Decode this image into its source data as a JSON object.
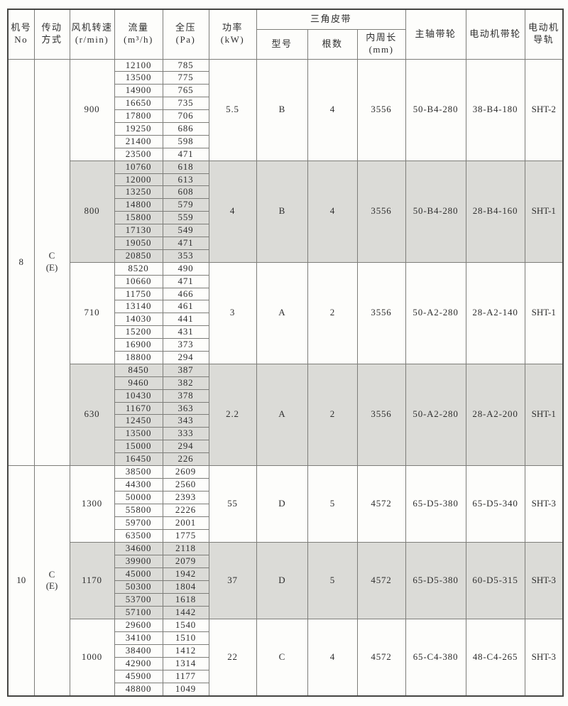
{
  "colors": {
    "shaded_row_bg": "#dbdbd7",
    "grid_line": "#7d7d79",
    "outer_border": "#454542",
    "text": "#2e2e2e",
    "page_bg": "#fdfdfb"
  },
  "table": {
    "headers": {
      "machine_no": "机号\nNo",
      "drive": "传动\n方式",
      "speed": "风机转速\n(r/min)",
      "flow": "流量\n(m³/h)",
      "pressure": "全压\n(Pa)",
      "power": "功率\n(kW)",
      "v_belt": "三角皮带",
      "belt_model": "型号",
      "belt_count": "根数",
      "belt_length": "内周长\n(mm)",
      "shaft_pulley": "主轴带轮",
      "motor_pulley": "电动机带轮",
      "motor_rail": "电动机\n导轨"
    },
    "sections": [
      {
        "machine_no": "8",
        "drive": "C\n(E)",
        "groups": [
          {
            "speed": "900",
            "power": "5.5",
            "belt_model": "B",
            "belt_count": "4",
            "belt_length": "3556",
            "shaft_pulley": "50-B4-280",
            "motor_pulley": "38-B4-180",
            "motor_rail": "SHT-2",
            "shaded": false,
            "rows": [
              [
                "12100",
                "785"
              ],
              [
                "13500",
                "775"
              ],
              [
                "14900",
                "765"
              ],
              [
                "16650",
                "735"
              ],
              [
                "17800",
                "706"
              ],
              [
                "19250",
                "686"
              ],
              [
                "21400",
                "598"
              ],
              [
                "23500",
                "471"
              ]
            ]
          },
          {
            "speed": "800",
            "power": "4",
            "belt_model": "B",
            "belt_count": "4",
            "belt_length": "3556",
            "shaft_pulley": "50-B4-280",
            "motor_pulley": "28-B4-160",
            "motor_rail": "SHT-1",
            "shaded": true,
            "rows": [
              [
                "10760",
                "618"
              ],
              [
                "12000",
                "613"
              ],
              [
                "13250",
                "608"
              ],
              [
                "14800",
                "579"
              ],
              [
                "15800",
                "559"
              ],
              [
                "17130",
                "549"
              ],
              [
                "19050",
                "471"
              ],
              [
                "20850",
                "353"
              ]
            ]
          },
          {
            "speed": "710",
            "power": "3",
            "belt_model": "A",
            "belt_count": "2",
            "belt_length": "3556",
            "shaft_pulley": "50-A2-280",
            "motor_pulley": "28-A2-140",
            "motor_rail": "SHT-1",
            "shaded": false,
            "rows": [
              [
                "8520",
                "490"
              ],
              [
                "10660",
                "471"
              ],
              [
                "11750",
                "466"
              ],
              [
                "13140",
                "461"
              ],
              [
                "14030",
                "441"
              ],
              [
                "15200",
                "431"
              ],
              [
                "16900",
                "373"
              ],
              [
                "18800",
                "294"
              ]
            ]
          },
          {
            "speed": "630",
            "power": "2.2",
            "belt_model": "A",
            "belt_count": "2",
            "belt_length": "3556",
            "shaft_pulley": "50-A2-280",
            "motor_pulley": "28-A2-200",
            "motor_rail": "SHT-1",
            "shaded": true,
            "rows": [
              [
                "8450",
                "387"
              ],
              [
                "9460",
                "382"
              ],
              [
                "10430",
                "378"
              ],
              [
                "11670",
                "363"
              ],
              [
                "12450",
                "343"
              ],
              [
                "13500",
                "333"
              ],
              [
                "15000",
                "294"
              ],
              [
                "16450",
                "226"
              ]
            ]
          }
        ]
      },
      {
        "machine_no": "10",
        "drive": "C\n(E)",
        "groups": [
          {
            "speed": "1300",
            "power": "55",
            "belt_model": "D",
            "belt_count": "5",
            "belt_length": "4572",
            "shaft_pulley": "65-D5-380",
            "motor_pulley": "65-D5-340",
            "motor_rail": "SHT-3",
            "shaded": false,
            "rows": [
              [
                "38500",
                "2609"
              ],
              [
                "44300",
                "2560"
              ],
              [
                "50000",
                "2393"
              ],
              [
                "55800",
                "2226"
              ],
              [
                "59700",
                "2001"
              ],
              [
                "63500",
                "1775"
              ]
            ]
          },
          {
            "speed": "1170",
            "power": "37",
            "belt_model": "D",
            "belt_count": "5",
            "belt_length": "4572",
            "shaft_pulley": "65-D5-380",
            "motor_pulley": "60-D5-315",
            "motor_rail": "SHT-3",
            "shaded": true,
            "rows": [
              [
                "34600",
                "2118"
              ],
              [
                "39900",
                "2079"
              ],
              [
                "45000",
                "1942"
              ],
              [
                "50300",
                "1804"
              ],
              [
                "53700",
                "1618"
              ],
              [
                "57100",
                "1442"
              ]
            ]
          },
          {
            "speed": "1000",
            "power": "22",
            "belt_model": "C",
            "belt_count": "4",
            "belt_length": "4572",
            "shaft_pulley": "65-C4-380",
            "motor_pulley": "48-C4-265",
            "motor_rail": "SHT-3",
            "shaded": false,
            "rows": [
              [
                "29600",
                "1540"
              ],
              [
                "34100",
                "1510"
              ],
              [
                "38400",
                "1412"
              ],
              [
                "42900",
                "1314"
              ],
              [
                "45900",
                "1177"
              ],
              [
                "48800",
                "1049"
              ]
            ]
          }
        ]
      }
    ]
  }
}
